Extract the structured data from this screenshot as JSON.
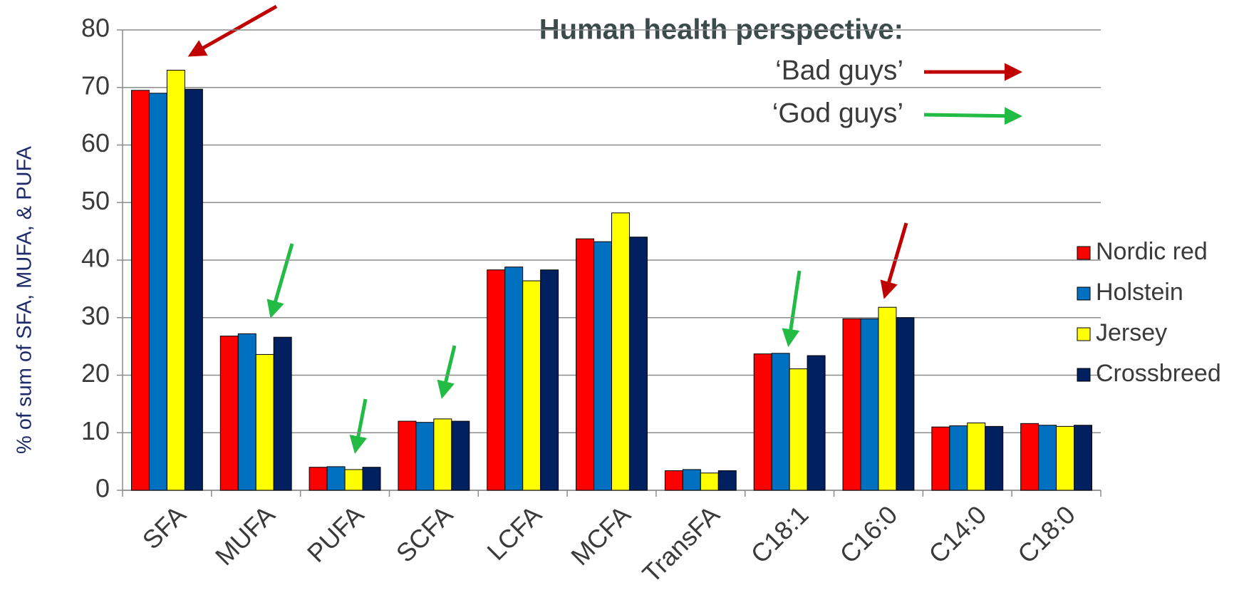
{
  "chart_data": {
    "type": "bar",
    "y_label": "% of sum of SFA, MUFA, & PUFA",
    "annotations": [
      "Human health perspective:",
      "‘Bad guys’",
      "‘God guys’"
    ],
    "categories": [
      "SFA",
      "MUFA",
      "PUFA",
      "SCFA",
      "LCFA",
      "MCFA",
      "TransFA",
      "C18:1",
      "C16:0",
      "C14:0",
      "C18:0"
    ],
    "series": [
      {
        "name": "Nordic red",
        "color": "#ff0000",
        "values": [
          69.5,
          26.8,
          4,
          12,
          38.3,
          43.7,
          3.4,
          23.7,
          29.8,
          11,
          11.6
        ]
      },
      {
        "name": "Holstein",
        "color": "#0070c0",
        "values": [
          69,
          27.2,
          4.1,
          11.8,
          38.8,
          43.2,
          3.6,
          23.8,
          29.8,
          11.2,
          11.3
        ]
      },
      {
        "name": "Jersey",
        "color": "#ffff00",
        "values": [
          73,
          23.6,
          3.6,
          12.4,
          36.4,
          48.2,
          3,
          21.1,
          31.8,
          11.7,
          11.1
        ]
      },
      {
        "name": "Crossbreed",
        "color": "#002060",
        "values": [
          69.7,
          26.6,
          4,
          12,
          38.3,
          44,
          3.4,
          23.4,
          30,
          11.1,
          11.3
        ]
      }
    ],
    "ylim": [
      0,
      80
    ],
    "yticks": [
      0,
      10,
      20,
      30,
      40,
      50,
      60,
      70,
      80
    ],
    "grid": true,
    "legend": "right"
  }
}
